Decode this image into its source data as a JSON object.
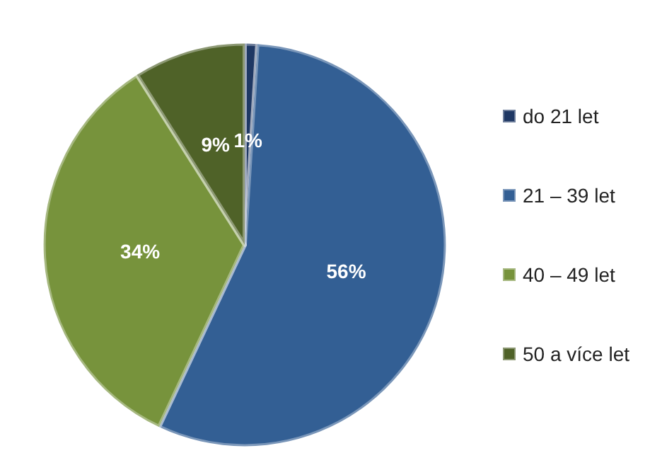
{
  "chart_data": {
    "type": "pie",
    "categories": [
      "do 21 let",
      "21 – 39 let",
      "40 – 49 let",
      "50 a více let"
    ],
    "values": [
      1,
      56,
      34,
      9
    ],
    "value_labels": [
      "1%",
      "56%",
      "34%",
      "9%"
    ],
    "colors": [
      "#1f3864",
      "#335f94",
      "#77933c",
      "#4f6228"
    ],
    "legend": "right"
  }
}
